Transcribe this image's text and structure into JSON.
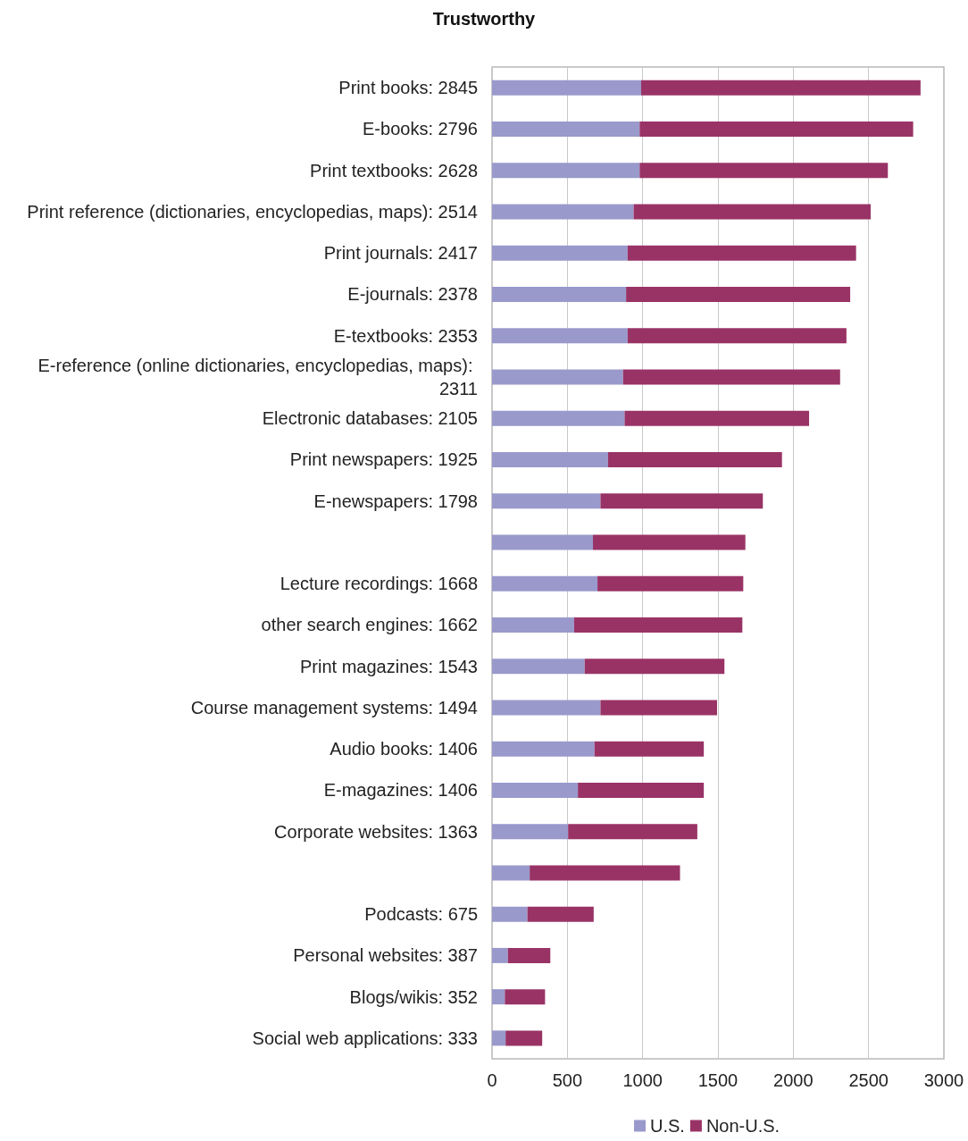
{
  "chart_data": {
    "type": "bar",
    "title": "Trustworthy",
    "orientation": "horizontal",
    "stacked": true,
    "categories": [
      "Print books: 2845",
      "E-books: 2796",
      "Print textbooks: 2628",
      "Print reference (dictionaries, encyclopedias, maps): 2514",
      "Print journals: 2417",
      "E-journals: 2378",
      "E-textbooks: 2353",
      "E-reference (online dictionaries, encyclopedias, maps): 2311",
      "Electronic databases: 2105",
      "Print newspapers: 1925",
      "E-newspapers: 1798",
      null,
      "Lecture recordings: 1668",
      "other search engines: 1662",
      "Print magazines: 1543",
      "Course management systems: 1494",
      "Audio books: 1406",
      "E-magazines: 1406",
      "Corporate websites: 1363",
      null,
      "Podcasts: 675",
      "Personal websites: 387",
      "Blogs/wikis: 352",
      "Social web applications: 333"
    ],
    "series": [
      {
        "name": "U.S.",
        "color": "#9999cc",
        "values": [
          990,
          980,
          980,
          940,
          900,
          890,
          900,
          870,
          880,
          770,
          720,
          670,
          700,
          545,
          615,
          720,
          680,
          570,
          505,
          250,
          235,
          105,
          85,
          90
        ]
      },
      {
        "name": "Non-U.S.",
        "color": "#993366",
        "values": [
          1855,
          1816,
          1648,
          1574,
          1517,
          1488,
          1453,
          1441,
          1225,
          1155,
          1078,
          1012,
          968,
          1117,
          928,
          774,
          726,
          836,
          858,
          998,
          440,
          282,
          267,
          243
        ]
      }
    ],
    "xlim": [
      0,
      3000
    ],
    "xticks": [
      0,
      500,
      1000,
      1500,
      2000,
      2500,
      3000
    ],
    "grid": "x",
    "legend": "bottom"
  }
}
